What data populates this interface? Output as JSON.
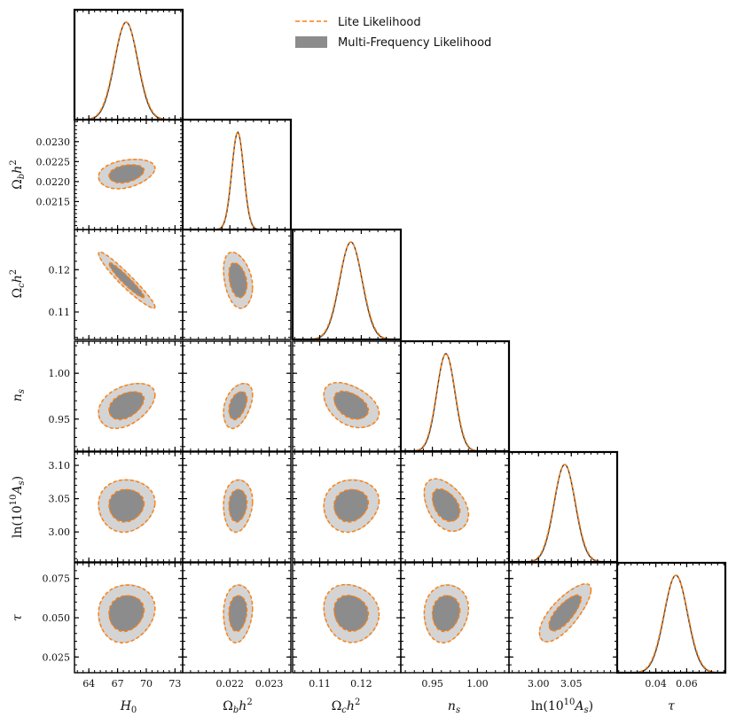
{
  "chart_data": {
    "type": "triangle-corner",
    "title": "",
    "legend": {
      "position": "top-right",
      "entries": [
        {
          "name": "Lite Likelihood",
          "style": "dashed-line",
          "color": "#ff7f0e"
        },
        {
          "name": "Multi-Frequency Likelihood",
          "style": "filled",
          "color": "#8c8c8c"
        }
      ]
    },
    "colors": {
      "lite": "#ff7f0e",
      "multi_inner": "#8c8c8c",
      "multi_outer": "#d4d4d4",
      "pdf_line": "#3a3a3a"
    },
    "parameters": [
      {
        "key": "H0",
        "range": [
          62.5,
          73.8
        ],
        "ticks": [
          64,
          67,
          70,
          73
        ],
        "tick_labels": [
          "64",
          "67",
          "70",
          "73"
        ],
        "mean": 67.9,
        "sigma": 1.2
      },
      {
        "key": "ombh2",
        "range": [
          0.0208,
          0.02355
        ],
        "ticks": [
          0.0215,
          0.022,
          0.0225,
          0.023
        ],
        "tick_labels": [
          "0.0215",
          "0.0220",
          "0.0225",
          "0.0230"
        ],
        "x_ticks": [
          0.022,
          0.023
        ],
        "x_tick_labels": [
          "0.022",
          "0.023"
        ],
        "mean": 0.0222,
        "sigma": 0.00015
      },
      {
        "key": "omch2",
        "range": [
          0.1035,
          0.1295
        ],
        "ticks": [
          0.11,
          0.12
        ],
        "tick_labels": [
          "0.11",
          "0.12"
        ],
        "mean": 0.1175,
        "sigma": 0.0027
      },
      {
        "key": "ns",
        "range": [
          0.915,
          1.035
        ],
        "ticks": [
          0.95,
          1.0
        ],
        "tick_labels": [
          "0.95",
          "1.00"
        ],
        "mean": 0.965,
        "sigma": 0.01
      },
      {
        "key": "logA",
        "range": [
          2.955,
          3.12
        ],
        "ticks": [
          3.0,
          3.05,
          3.1
        ],
        "tick_labels": [
          "3.00",
          "3.05",
          "3.10"
        ],
        "x_ticks": [
          3.0,
          3.05
        ],
        "x_tick_labels": [
          "3.00",
          "3.05"
        ],
        "mean": 3.04,
        "sigma": 0.016
      },
      {
        "key": "tau",
        "range": [
          0.015,
          0.085
        ],
        "ticks": [
          0.025,
          0.05,
          0.075
        ],
        "tick_labels": [
          "0.025",
          "0.050",
          "0.075"
        ],
        "x_ticks": [
          0.04,
          0.06
        ],
        "x_tick_labels": [
          "0.04",
          "0.06"
        ],
        "mean": 0.053,
        "sigma": 0.0075
      }
    ],
    "correlations": [
      [
        1.0,
        0.3,
        -0.95,
        0.4,
        0.05,
        0.1
      ],
      [
        0.3,
        1.0,
        -0.3,
        0.4,
        0.1,
        0.1
      ],
      [
        -0.95,
        -0.3,
        1.0,
        -0.4,
        0.1,
        -0.1
      ],
      [
        0.4,
        0.4,
        -0.4,
        1.0,
        -0.4,
        0.1
      ],
      [
        0.05,
        0.1,
        0.1,
        -0.4,
        1.0,
        0.75
      ],
      [
        0.1,
        0.1,
        -0.1,
        0.1,
        0.75,
        1.0
      ]
    ],
    "contour_levels_sigma": [
      1,
      2
    ]
  }
}
